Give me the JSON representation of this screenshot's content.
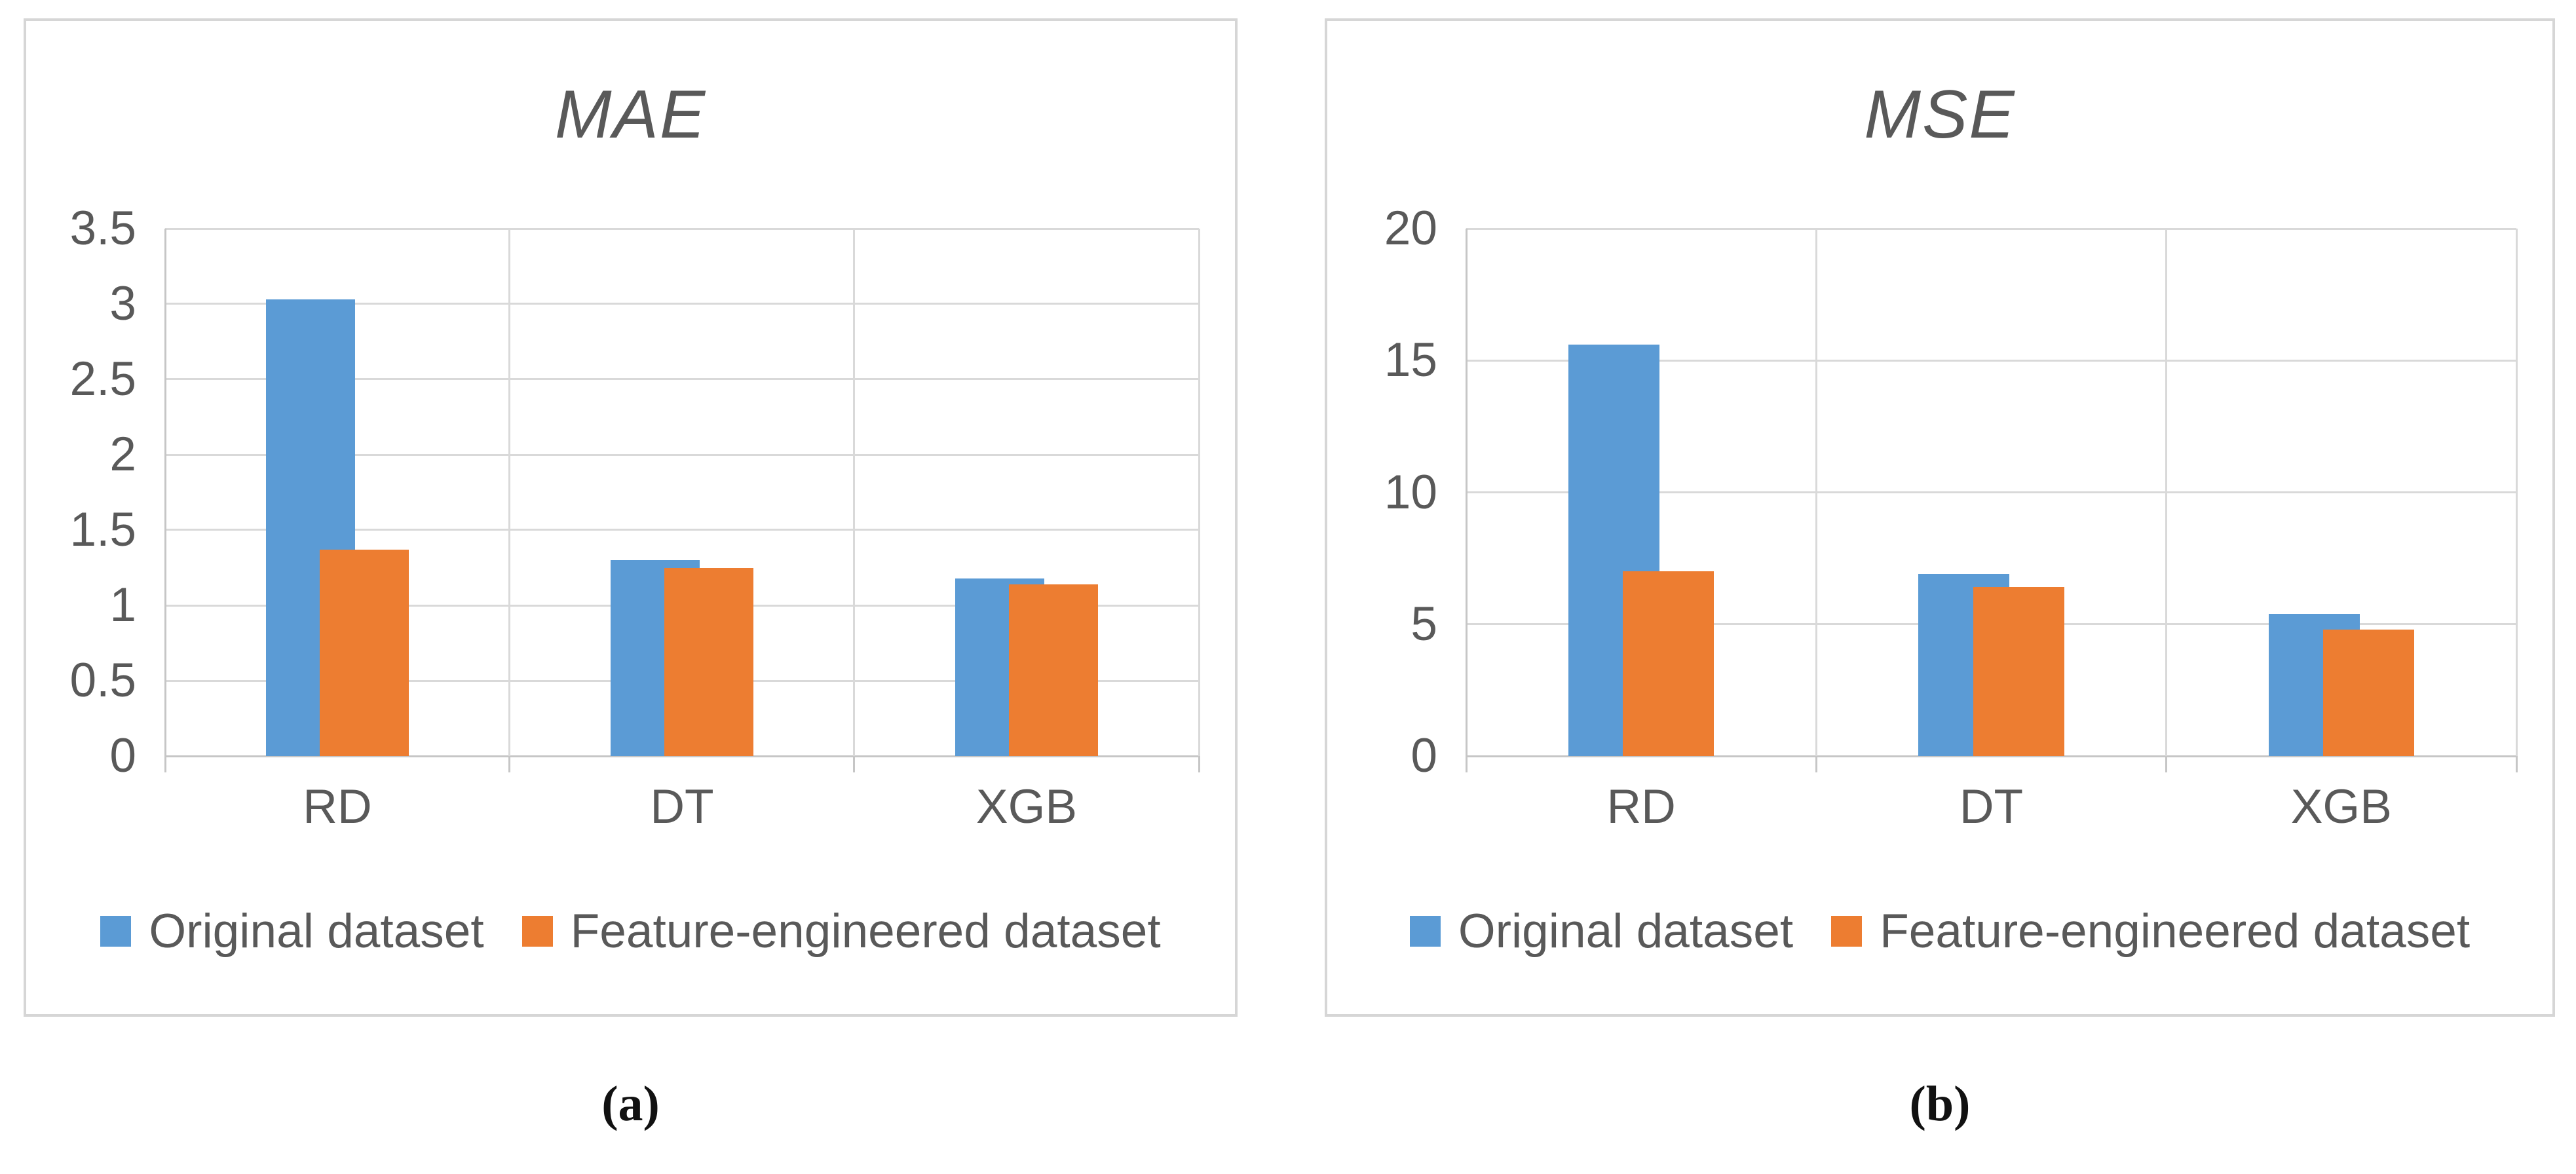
{
  "page": {
    "background": "#ffffff"
  },
  "colors": {
    "series_blue": "#5B9BD5",
    "series_orange": "#ED7D31",
    "gridline": "#D9D9D9",
    "axis": "#C6C6C6",
    "chart_text": "#595959",
    "caption_text": "#111111",
    "panel_border": "#D6D6D6"
  },
  "captions": {
    "a": "(a)",
    "b": "(b)"
  },
  "chart_data": [
    {
      "type": "bar",
      "title": "MAE",
      "categories": [
        "RD",
        "DT",
        "XGB"
      ],
      "series": [
        {
          "name": "Original dataset",
          "color": "#5B9BD5",
          "values": [
            3.03,
            1.3,
            1.18
          ]
        },
        {
          "name": "Feature-engineered dataset",
          "color": "#ED7D31",
          "values": [
            1.37,
            1.25,
            1.14
          ]
        }
      ],
      "xlabel": "",
      "ylabel": "",
      "ylim": [
        0,
        3.5
      ],
      "yticks": [
        0,
        0.5,
        1,
        1.5,
        2,
        2.5,
        3,
        3.5
      ],
      "grid": true,
      "vertical_category_separators": true,
      "legend_position": "bottom"
    },
    {
      "type": "bar",
      "title": "MSE",
      "categories": [
        "RD",
        "DT",
        "XGB"
      ],
      "series": [
        {
          "name": "Original dataset",
          "color": "#5B9BD5",
          "values": [
            15.6,
            6.9,
            5.4
          ]
        },
        {
          "name": "Feature-engineered dataset",
          "color": "#ED7D31",
          "values": [
            7.0,
            6.4,
            4.8
          ]
        }
      ],
      "xlabel": "",
      "ylabel": "",
      "ylim": [
        0,
        20
      ],
      "yticks": [
        0,
        5,
        10,
        15,
        20
      ],
      "grid": true,
      "vertical_category_separators": true,
      "legend_position": "bottom"
    }
  ]
}
